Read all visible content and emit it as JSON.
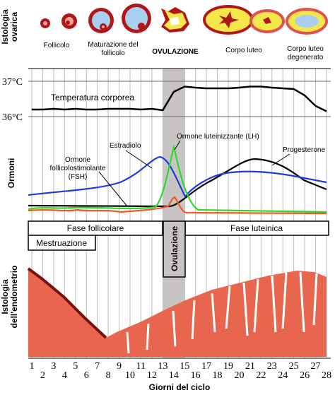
{
  "ovary": {
    "title": [
      "Istologia",
      "ovarica"
    ],
    "stages": [
      [
        "Follicolo"
      ],
      [
        "Maturazione del",
        "follicolo"
      ],
      [
        "OVULAZIONE"
      ],
      [
        "Corpo luteo"
      ],
      [
        "Corpo luteo",
        "degenerato"
      ]
    ]
  },
  "temperature": {
    "label": "Temperatura corporea",
    "ticks": [
      {
        "value": 37,
        "label": "37°C"
      },
      {
        "value": 36,
        "label": "36°C"
      }
    ],
    "values": [
      36.2,
      36.2,
      36.22,
      36.2,
      36.22,
      36.2,
      36.2,
      36.22,
      36.22,
      36.22,
      36.2,
      36.22,
      36.18,
      36.7,
      36.85,
      36.82,
      36.8,
      36.8,
      36.8,
      36.82,
      36.85,
      36.85,
      36.82,
      36.8,
      36.78,
      36.6,
      36.3,
      36.15
    ]
  },
  "hormones": {
    "title": "Ormoni",
    "labels": {
      "estradiol": [
        "Estradiolo"
      ],
      "lh": [
        "Ormone luteinizzante (LH)"
      ],
      "fsh": [
        "Ormone",
        "follicolostimolante",
        "(FSH)"
      ],
      "progesterone": [
        "Progesterone"
      ]
    }
  },
  "phases": {
    "follicular": "Fase follicolare",
    "luteal": "Fase luteinica",
    "menstruation": "Mestruazione",
    "ovulation": "Ovulazione"
  },
  "endometrium": {
    "title": [
      "Istologia",
      "dell'endometrio"
    ]
  },
  "x_axis": {
    "label": "Giorni del ciclo",
    "ticks": [
      1,
      2,
      3,
      4,
      5,
      6,
      7,
      8,
      9,
      10,
      11,
      12,
      13,
      14,
      15,
      16,
      17,
      18,
      19,
      20,
      21,
      22,
      23,
      24,
      25,
      26,
      27,
      28
    ]
  }
}
